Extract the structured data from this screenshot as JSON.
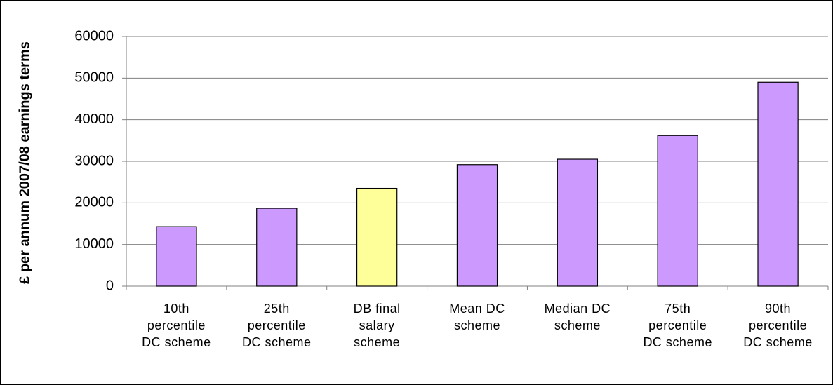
{
  "chart_data": {
    "type": "bar",
    "y_label": "£ per annum 2007/08 earnings terms",
    "categories": [
      "10th percentile DC scheme",
      "25th percentile DC scheme",
      "DB final salary scheme",
      "Mean DC scheme",
      "Median DC scheme",
      "75th percentile DC scheme",
      "90th percentile DC scheme"
    ],
    "values": [
      14300,
      18700,
      23500,
      29200,
      30500,
      36200,
      49000
    ],
    "colors": [
      "#cc99ff",
      "#cc99ff",
      "#ffff99",
      "#cc99ff",
      "#cc99ff",
      "#cc99ff",
      "#cc99ff"
    ],
    "ylim": [
      0,
      60000
    ],
    "yticks": [
      0,
      10000,
      20000,
      30000,
      40000,
      50000,
      60000
    ],
    "grid": true
  }
}
